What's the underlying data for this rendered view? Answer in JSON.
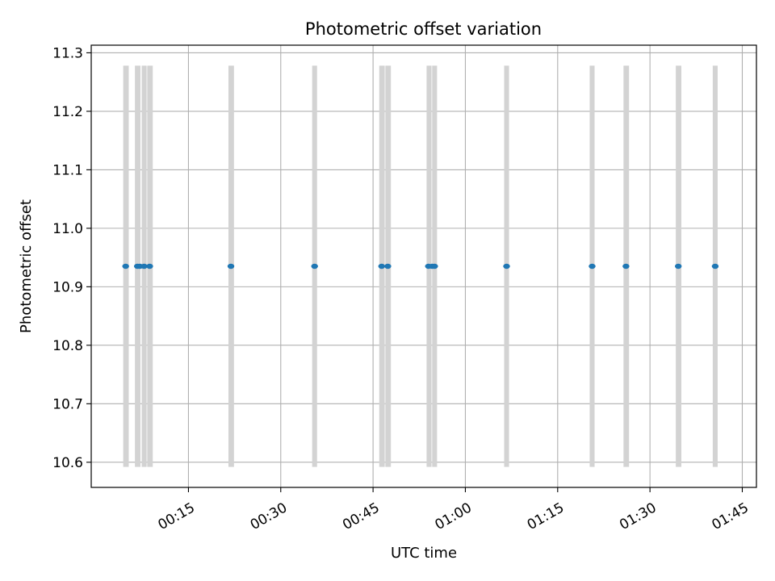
{
  "chart_data": {
    "type": "scatter",
    "title": "Photometric offset variation",
    "xlabel": "UTC time",
    "ylabel": "Photometric offset",
    "x_unit": "minutes",
    "xlim": [
      -0.8,
      107.3
    ],
    "ylim": [
      10.557,
      11.313
    ],
    "grid": true,
    "legend": "none",
    "x_ticks": [
      {
        "value": 15,
        "label": "00:15"
      },
      {
        "value": 30,
        "label": "00:30"
      },
      {
        "value": 45,
        "label": "00:45"
      },
      {
        "value": 60,
        "label": "01:00"
      },
      {
        "value": 75,
        "label": "01:15"
      },
      {
        "value": 90,
        "label": "01:30"
      },
      {
        "value": 105,
        "label": "01:45"
      }
    ],
    "y_ticks": [
      {
        "value": 10.6,
        "label": "10.6"
      },
      {
        "value": 10.7,
        "label": "10.7"
      },
      {
        "value": 10.8,
        "label": "10.8"
      },
      {
        "value": 10.9,
        "label": "10.9"
      },
      {
        "value": 11.0,
        "label": "11.0"
      },
      {
        "value": 11.1,
        "label": "11.1"
      },
      {
        "value": 11.2,
        "label": "11.2"
      },
      {
        "value": 11.3,
        "label": "11.3"
      }
    ],
    "points_color": "#1f77b4",
    "bands_color": "#d3d3d3",
    "band_range": [
      10.592,
      11.278
    ],
    "bands": [
      [
        4.4,
        5.3
      ],
      [
        6.3,
        7.2
      ],
      [
        7.4,
        8.2
      ],
      [
        8.3,
        9.2
      ],
      [
        21.5,
        22.4
      ],
      [
        35.1,
        35.9
      ],
      [
        46.0,
        46.9
      ],
      [
        47.0,
        47.9
      ],
      [
        53.7,
        54.5
      ],
      [
        54.6,
        55.4
      ],
      [
        66.3,
        67.1
      ],
      [
        80.2,
        81.0
      ],
      [
        85.7,
        86.6
      ],
      [
        94.2,
        95.1
      ],
      [
        100.2,
        101.0
      ]
    ],
    "series": [
      {
        "points": [
          {
            "x": 4.8,
            "y": 10.935
          },
          {
            "x": 6.7,
            "y": 10.935
          },
          {
            "x": 7.1,
            "y": 10.935
          },
          {
            "x": 7.8,
            "y": 10.935
          },
          {
            "x": 8.7,
            "y": 10.935
          },
          {
            "x": 21.9,
            "y": 10.935
          },
          {
            "x": 35.5,
            "y": 10.935
          },
          {
            "x": 46.4,
            "y": 10.935
          },
          {
            "x": 47.4,
            "y": 10.935
          },
          {
            "x": 54.0,
            "y": 10.935
          },
          {
            "x": 54.6,
            "y": 10.935
          },
          {
            "x": 55.0,
            "y": 10.935
          },
          {
            "x": 66.7,
            "y": 10.935
          },
          {
            "x": 80.6,
            "y": 10.935
          },
          {
            "x": 86.1,
            "y": 10.935
          },
          {
            "x": 94.6,
            "y": 10.935
          },
          {
            "x": 100.6,
            "y": 10.935
          }
        ]
      }
    ]
  }
}
